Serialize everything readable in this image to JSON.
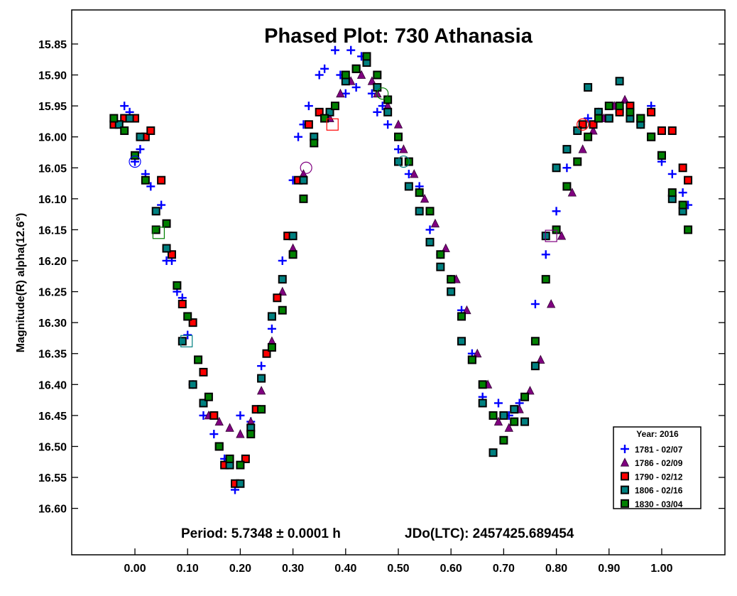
{
  "chart_data": {
    "type": "scatter",
    "title": "Phased Plot: 730 Athanasia",
    "ylabel": "Magnitude(R) alpha(12.6°)",
    "xlabel": "",
    "annotation_period": "Period: 5.7348 ± 0.0001 h",
    "annotation_epoch": "JDo(LTC): 2457425.689454",
    "xlim": [
      -0.12,
      1.12
    ],
    "ylim": [
      16.675,
      15.795
    ],
    "y_inverted": true,
    "x_ticks": [
      "0.00",
      "0.10",
      "0.20",
      "0.30",
      "0.40",
      "0.50",
      "0.60",
      "0.70",
      "0.80",
      "0.90",
      "1.00"
    ],
    "y_ticks": [
      "15.85",
      "15.90",
      "15.95",
      "16.00",
      "16.05",
      "16.10",
      "16.15",
      "16.20",
      "16.25",
      "16.30",
      "16.35",
      "16.40",
      "16.45",
      "16.50",
      "16.55",
      "16.60"
    ],
    "grid": false,
    "legend": {
      "position": "bottom-right",
      "title": "Year: 2016",
      "entries": [
        "1781 - 02/07",
        "1786 - 02/09",
        "1790 - 02/12",
        "1806 - 02/16",
        "1830 - 03/04"
      ]
    },
    "series": [
      {
        "name": "1781 - 02/07",
        "marker": "plus",
        "color": "#0000ff",
        "x": [
          -0.02,
          -0.01,
          0.0,
          0.01,
          0.02,
          0.03,
          0.05,
          0.06,
          0.07,
          0.08,
          0.09,
          0.1,
          0.11,
          0.13,
          0.15,
          0.17,
          0.19,
          0.2,
          0.22,
          0.24,
          0.26,
          0.28,
          0.3,
          0.31,
          0.32,
          0.33,
          0.35,
          0.36,
          0.38,
          0.39,
          0.4,
          0.41,
          0.42,
          0.43,
          0.45,
          0.46,
          0.47,
          0.48,
          0.5,
          0.52,
          0.54,
          0.56,
          0.58,
          0.6,
          0.62,
          0.64,
          0.66,
          0.69,
          0.71,
          0.73,
          0.76,
          0.78,
          0.8,
          0.82,
          0.84,
          0.86,
          0.88,
          0.9,
          0.92,
          0.94,
          0.96,
          0.98,
          1.0,
          1.02,
          1.04,
          1.05
        ],
        "y": [
          15.95,
          15.96,
          16.04,
          16.02,
          16.06,
          16.08,
          16.11,
          16.2,
          16.2,
          16.25,
          16.26,
          16.32,
          16.4,
          16.45,
          16.48,
          16.52,
          16.57,
          16.45,
          16.46,
          16.37,
          16.31,
          16.2,
          16.07,
          16.0,
          15.98,
          15.95,
          15.9,
          15.89,
          15.86,
          15.9,
          15.93,
          15.86,
          15.92,
          15.87,
          15.93,
          15.96,
          15.95,
          15.98,
          16.02,
          16.06,
          16.08,
          16.15,
          16.19,
          16.23,
          16.28,
          16.35,
          16.42,
          16.43,
          16.45,
          16.43,
          16.27,
          16.19,
          16.12,
          16.05,
          15.99,
          15.97,
          15.96,
          15.97,
          15.96,
          15.97,
          15.98,
          15.95,
          16.04,
          16.06,
          16.09,
          16.11
        ]
      },
      {
        "name": "1786 - 02/09",
        "marker": "triangle",
        "color": "#800080",
        "x": [
          0.14,
          0.16,
          0.18,
          0.2,
          0.22,
          0.24,
          0.26,
          0.28,
          0.3,
          0.32,
          0.34,
          0.37,
          0.39,
          0.41,
          0.43,
          0.45,
          0.46,
          0.48,
          0.5,
          0.51,
          0.53,
          0.55,
          0.57,
          0.59,
          0.61,
          0.63,
          0.65,
          0.67,
          0.69,
          0.71,
          0.73,
          0.75,
          0.77,
          0.79,
          0.81,
          0.83,
          0.85,
          0.87,
          0.89,
          0.91,
          0.93
        ],
        "y": [
          16.45,
          16.46,
          16.47,
          16.48,
          16.46,
          16.41,
          16.33,
          16.25,
          16.18,
          16.06,
          16.01,
          15.97,
          15.93,
          15.91,
          15.9,
          15.91,
          15.93,
          15.95,
          15.98,
          16.02,
          16.06,
          16.1,
          16.14,
          16.18,
          16.23,
          16.28,
          16.35,
          16.4,
          16.46,
          16.47,
          16.44,
          16.41,
          16.36,
          16.27,
          16.16,
          16.09,
          16.02,
          15.99,
          15.97,
          15.95,
          15.94
        ]
      },
      {
        "name": "1790 - 02/12",
        "marker": "square",
        "color": "#ff0000",
        "x": [
          -0.04,
          -0.02,
          0.0,
          0.02,
          0.03,
          0.05,
          0.07,
          0.09,
          0.11,
          0.13,
          0.15,
          0.17,
          0.19,
          0.21,
          0.23,
          0.25,
          0.27,
          0.29,
          0.31,
          0.33,
          0.35,
          0.36,
          0.85,
          0.87,
          0.9,
          0.92,
          0.94,
          0.96,
          0.98,
          1.0,
          1.02,
          1.04,
          1.05
        ],
        "y": [
          15.98,
          15.97,
          15.97,
          16.0,
          15.99,
          16.07,
          16.19,
          16.27,
          16.3,
          16.38,
          16.45,
          16.53,
          16.56,
          16.52,
          16.44,
          16.35,
          16.26,
          16.16,
          16.07,
          15.98,
          15.96,
          15.97,
          15.98,
          15.98,
          15.97,
          15.96,
          15.95,
          15.97,
          15.96,
          15.99,
          15.99,
          16.05,
          16.07
        ]
      },
      {
        "name": "1806 - 02/16",
        "marker": "square",
        "color": "#008080",
        "x": [
          -0.03,
          -0.01,
          0.01,
          0.04,
          0.06,
          0.09,
          0.11,
          0.13,
          0.16,
          0.18,
          0.2,
          0.22,
          0.24,
          0.26,
          0.28,
          0.3,
          0.32,
          0.34,
          0.37,
          0.4,
          0.42,
          0.44,
          0.46,
          0.48,
          0.5,
          0.52,
          0.54,
          0.56,
          0.58,
          0.6,
          0.62,
          0.64,
          0.66,
          0.68,
          0.7,
          0.72,
          0.74,
          0.76,
          0.78,
          0.8,
          0.82,
          0.84,
          0.86,
          0.88,
          0.9,
          0.92,
          0.94,
          0.96,
          0.98,
          1.0,
          1.02,
          1.04
        ],
        "y": [
          15.98,
          15.97,
          16.0,
          16.12,
          16.18,
          16.33,
          16.4,
          16.43,
          16.5,
          16.53,
          16.56,
          16.47,
          16.39,
          16.29,
          16.23,
          16.16,
          16.07,
          16.0,
          15.96,
          15.91,
          15.89,
          15.88,
          15.92,
          15.96,
          16.04,
          16.08,
          16.12,
          16.17,
          16.21,
          16.25,
          16.33,
          16.36,
          16.43,
          16.51,
          16.45,
          16.44,
          16.46,
          16.37,
          16.16,
          16.05,
          16.02,
          15.99,
          15.92,
          15.96,
          15.97,
          15.91,
          15.97,
          15.98,
          16.0,
          16.03,
          16.1,
          16.12
        ]
      },
      {
        "name": "1830 - 03/04",
        "marker": "square",
        "color": "#008000",
        "x": [
          -0.04,
          -0.02,
          0.0,
          0.02,
          0.04,
          0.06,
          0.08,
          0.1,
          0.12,
          0.14,
          0.16,
          0.18,
          0.2,
          0.22,
          0.24,
          0.26,
          0.28,
          0.3,
          0.32,
          0.34,
          0.36,
          0.38,
          0.4,
          0.42,
          0.44,
          0.46,
          0.48,
          0.5,
          0.52,
          0.54,
          0.56,
          0.58,
          0.6,
          0.62,
          0.64,
          0.66,
          0.68,
          0.7,
          0.72,
          0.74,
          0.76,
          0.78,
          0.8,
          0.82,
          0.84,
          0.86,
          0.88,
          0.9,
          0.92,
          0.94,
          0.96,
          0.98,
          1.0,
          1.02,
          1.04,
          1.05
        ],
        "y": [
          15.97,
          15.99,
          16.03,
          16.07,
          16.15,
          16.14,
          16.24,
          16.29,
          16.36,
          16.42,
          16.5,
          16.52,
          16.53,
          16.48,
          16.44,
          16.34,
          16.28,
          16.19,
          16.1,
          16.01,
          15.97,
          15.95,
          15.9,
          15.89,
          15.87,
          15.9,
          15.94,
          16.0,
          16.04,
          16.09,
          16.12,
          16.19,
          16.23,
          16.29,
          16.36,
          16.4,
          16.45,
          16.49,
          16.46,
          16.42,
          16.33,
          16.23,
          16.15,
          16.08,
          16.04,
          16.0,
          15.97,
          15.95,
          15.95,
          15.96,
          15.97,
          16.0,
          16.03,
          16.09,
          16.11,
          16.15
        ]
      }
    ],
    "highlighted_points": [
      {
        "series": "1781 - 02/07",
        "marker": "circle",
        "x": 0.0,
        "y": 16.04
      },
      {
        "series": "1786 - 02/09",
        "marker": "circle",
        "x": 0.325,
        "y": 16.05
      },
      {
        "series": "1830 - 03/04",
        "marker": "circle",
        "x": 0.47,
        "y": 15.93
      },
      {
        "series": "1806 - 02/16",
        "marker": "circle",
        "x": 0.51,
        "y": 16.04
      },
      {
        "series": "1790 - 02/12",
        "marker": "circle",
        "x": 0.85,
        "y": 15.98
      },
      {
        "series": "1830 - 03/04",
        "marker": "square",
        "x": 0.045,
        "y": 16.155
      },
      {
        "series": "1806 - 02/16",
        "marker": "square",
        "x": 0.098,
        "y": 16.33
      },
      {
        "series": "1790 - 02/12",
        "marker": "square",
        "x": 0.375,
        "y": 15.98
      },
      {
        "series": "1786 - 02/09",
        "marker": "square",
        "x": 0.79,
        "y": 16.16
      }
    ]
  }
}
